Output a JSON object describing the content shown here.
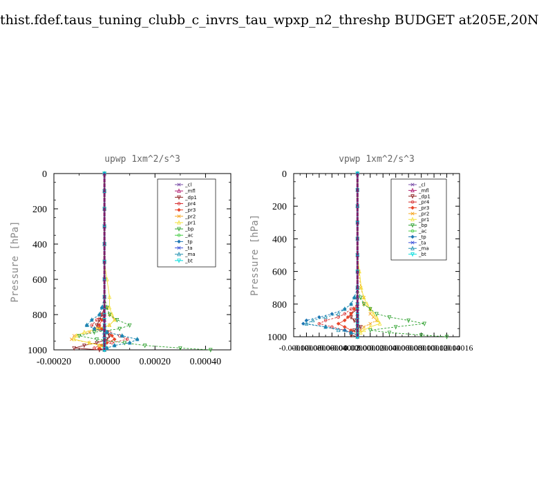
{
  "page": {
    "title": "thist.fdef.taus_tuning_clubb_c_invrs_tau_wpxp_n2_threshp  BUDGET at205E,20N"
  },
  "colors": {
    "cl": "#7b4fa8",
    "mfl": "#b0196e",
    "dp1": "#8b1a1a",
    "pr4": "#d62728",
    "pr3": "#e8452a",
    "pr2": "#f5a623",
    "pr1": "#f2e03a",
    "bp": "#2ca02c",
    "ac": "#44cc44",
    "tp": "#1f77b4",
    "ta": "#3a50d9",
    "ma": "#1f8fb0",
    "bt": "#00dddd"
  },
  "chart_data": [
    {
      "type": "line",
      "title": "upwp  1xm^2/s^3",
      "xlabel": "",
      "ylabel": "Pressure [hPa]",
      "xlim": [
        -0.0002,
        0.0005
      ],
      "ylim": [
        1000,
        0
      ],
      "xticks": [
        -0.0002,
        0,
        0.0002,
        0.0004
      ],
      "xtick_labels": [
        "-0.00020",
        "0.00000",
        "0.00020",
        "0.00040"
      ],
      "yticks": [
        0,
        200,
        400,
        600,
        800,
        1000
      ],
      "ytick_labels": [
        "0",
        "200",
        "400",
        "600",
        "800",
        "1000"
      ],
      "legend_position": "top-right",
      "grid": false,
      "levels": [
        0,
        100,
        200,
        300,
        400,
        500,
        600,
        700,
        760,
        800,
        830,
        860,
        880,
        900,
        920,
        940,
        960,
        975,
        990,
        1000
      ],
      "series": [
        {
          "name": "_cl",
          "color_key": "cl",
          "values": [
            0,
            0,
            0,
            0,
            0,
            0,
            0,
            0,
            0,
            0,
            0,
            0,
            0,
            0,
            0,
            0,
            0,
            0,
            0,
            0
          ]
        },
        {
          "name": "_mfl",
          "color_key": "mfl",
          "values": [
            0,
            0,
            0,
            0,
            0,
            0,
            0,
            0,
            0,
            0,
            0,
            0,
            0,
            0,
            0,
            0,
            0,
            0,
            0,
            0
          ]
        },
        {
          "name": "_dp1",
          "color_key": "dp1",
          "values": [
            0,
            0,
            0,
            0,
            0,
            0,
            0,
            0,
            0,
            -1e-05,
            -2e-05,
            -3e-05,
            -2e-05,
            1e-05,
            2e-05,
            1e-05,
            -3e-05,
            -8e-05,
            -0.00012,
            -2e-05
          ]
        },
        {
          "name": "_pr4",
          "color_key": "pr4",
          "values": [
            0,
            0,
            0,
            0,
            0,
            0,
            0,
            0,
            0,
            -1e-05,
            -3e-05,
            -5e-05,
            -3e-05,
            2e-05,
            6e-05,
            9e-05,
            3e-05,
            -2e-05,
            -4e-05,
            0
          ]
        },
        {
          "name": "_pr3",
          "color_key": "pr3",
          "values": [
            0,
            0,
            0,
            0,
            0,
            0,
            0,
            0,
            0,
            0,
            -1e-05,
            -2e-05,
            -1e-05,
            1e-05,
            3e-05,
            4e-05,
            1e-05,
            -1e-05,
            -2e-05,
            0
          ]
        },
        {
          "name": "_pr2",
          "color_key": "pr2",
          "values": [
            0,
            0,
            0,
            0,
            0,
            0,
            0,
            0,
            1e-05,
            2e-05,
            4e-05,
            2e-05,
            -2e-05,
            -6e-05,
            -0.00012,
            -0.00013,
            -6e-05,
            -1e-05,
            1e-05,
            0
          ]
        },
        {
          "name": "_pr1",
          "color_key": "pr1",
          "values": [
            0,
            0,
            0,
            0,
            0,
            0,
            1e-05,
            2e-05,
            2e-05,
            3e-05,
            4e-05,
            2e-05,
            -3e-05,
            -8e-05,
            -0.00011,
            -0.00012,
            -6e-05,
            -2e-05,
            0,
            0
          ]
        },
        {
          "name": "_bp",
          "color_key": "bp",
          "values": [
            0,
            0,
            0,
            0,
            0,
            0,
            0,
            0,
            1e-05,
            2e-05,
            5e-05,
            0.0001,
            6e-05,
            -4e-05,
            -0.0001,
            -3e-05,
            8e-05,
            0.00016,
            0.0003,
            0.00042
          ]
        },
        {
          "name": "_ac",
          "color_key": "ac",
          "values": [
            0,
            0,
            0,
            0,
            0,
            0,
            0,
            0,
            0,
            0,
            0,
            0,
            0,
            0,
            0,
            0,
            0,
            0,
            0,
            0
          ]
        },
        {
          "name": "_tp",
          "color_key": "tp",
          "values": [
            0,
            0,
            0,
            0,
            0,
            0,
            0,
            0,
            -1e-05,
            -2e-05,
            -5e-05,
            -7e-05,
            -4e-05,
            1e-05,
            7e-05,
            0.00013,
            0.0001,
            4e-05,
            1e-05,
            0
          ]
        },
        {
          "name": "_ta",
          "color_key": "ta",
          "values": [
            0,
            0,
            0,
            0,
            0,
            0,
            0,
            0,
            0,
            0,
            0,
            0,
            0,
            0,
            0,
            0,
            0,
            0,
            0,
            0
          ]
        },
        {
          "name": "_ma",
          "color_key": "ma",
          "values": [
            0,
            0,
            0,
            0,
            0,
            0,
            0,
            0,
            -1e-05,
            -2e-05,
            -5e-05,
            -7e-05,
            -4e-05,
            1e-05,
            7e-05,
            0.00013,
            0.0001,
            4e-05,
            1e-05,
            0
          ]
        },
        {
          "name": "_bt",
          "color_key": "bt",
          "values": [
            0,
            0,
            0,
            0,
            0,
            0,
            0,
            0,
            0,
            0,
            0,
            0,
            0,
            0,
            0,
            0,
            0,
            0,
            0,
            0
          ]
        }
      ]
    },
    {
      "type": "line",
      "title": "vpwp  1xm^2/s^3",
      "xlabel": "",
      "ylabel": "Pressure [hPa]",
      "xlim": [
        -0.0001,
        0.00016
      ],
      "ylim": [
        1000,
        0
      ],
      "xticks": [
        -0.0001,
        -8e-05,
        -6e-05,
        -4e-05,
        -2e-05,
        0,
        2e-05,
        4e-05,
        6e-05,
        8e-05,
        0.0001,
        0.00012,
        0.00014,
        0.00016
      ],
      "xtick_labels": [
        "-0.00010",
        "-0.00008",
        "-0.00006",
        "-0.00004",
        "-0.00002",
        "0.00000",
        "0.00002",
        "0.00004",
        "0.00006",
        "0.00008",
        "0.00010",
        "0.00012",
        "0.00014",
        "0.00016"
      ],
      "yticks": [
        0,
        200,
        400,
        600,
        800,
        1000
      ],
      "ytick_labels": [
        "0",
        "200",
        "400",
        "600",
        "800",
        "1000"
      ],
      "legend_position": "top-right",
      "grid": false,
      "levels": [
        0,
        100,
        200,
        300,
        400,
        500,
        600,
        700,
        760,
        800,
        830,
        860,
        880,
        900,
        920,
        940,
        960,
        975,
        990,
        1000
      ],
      "series": [
        {
          "name": "_cl",
          "color_key": "cl",
          "values": [
            0,
            0,
            0,
            0,
            0,
            0,
            0,
            0,
            0,
            0,
            0,
            0,
            0,
            0,
            0,
            0,
            0,
            0,
            0,
            0
          ]
        },
        {
          "name": "_mfl",
          "color_key": "mfl",
          "values": [
            0,
            0,
            0,
            0,
            0,
            0,
            0,
            0,
            0,
            0,
            0,
            0,
            0,
            0,
            0,
            0,
            0,
            0,
            0,
            0
          ]
        },
        {
          "name": "_dp1",
          "color_key": "dp1",
          "values": [
            0,
            0,
            0,
            0,
            0,
            0,
            0,
            0,
            0,
            0,
            0,
            -1e-05,
            -1e-05,
            -5e-06,
            0,
            5e-06,
            -5e-06,
            -1e-05,
            -1e-05,
            0
          ]
        },
        {
          "name": "_pr4",
          "color_key": "pr4",
          "values": [
            0,
            0,
            0,
            0,
            0,
            0,
            0,
            0,
            0,
            0,
            -1e-05,
            -2e-05,
            -3e-05,
            -5e-05,
            -6e-05,
            -4e-05,
            -2e-05,
            -1e-05,
            0,
            0
          ]
        },
        {
          "name": "_pr3",
          "color_key": "pr3",
          "values": [
            0,
            0,
            0,
            0,
            0,
            0,
            0,
            0,
            0,
            0,
            -5e-06,
            -1e-05,
            -1.5e-05,
            -2e-05,
            -3e-05,
            -2e-05,
            -1e-05,
            0,
            0,
            0
          ]
        },
        {
          "name": "_pr2",
          "color_key": "pr2",
          "values": [
            0,
            0,
            0,
            0,
            0,
            0,
            2e-06,
            5e-06,
            1e-05,
            1e-05,
            2e-05,
            2e-05,
            2.5e-05,
            3e-05,
            2e-05,
            1e-05,
            5e-06,
            0,
            0,
            0
          ]
        },
        {
          "name": "_pr1",
          "color_key": "pr1",
          "values": [
            0,
            0,
            0,
            0,
            0,
            0,
            3e-06,
            6e-06,
            1e-05,
            1.5e-05,
            2e-05,
            2.5e-05,
            3e-05,
            3.2e-05,
            3.5e-05,
            2e-05,
            1e-05,
            5e-06,
            0,
            0
          ]
        },
        {
          "name": "_bp",
          "color_key": "bp",
          "values": [
            0,
            0,
            0,
            0,
            0,
            0,
            0,
            0,
            5e-06,
            1e-05,
            2e-05,
            3e-05,
            5e-05,
            8e-05,
            0.000105,
            6e-05,
            2e-05,
            5e-05,
            0.0001,
            0.00014
          ]
        },
        {
          "name": "_ac",
          "color_key": "ac",
          "values": [
            0,
            0,
            0,
            0,
            0,
            0,
            0,
            0,
            0,
            0,
            0,
            0,
            0,
            0,
            0,
            0,
            0,
            0,
            0,
            0
          ]
        },
        {
          "name": "_tp",
          "color_key": "tp",
          "values": [
            0,
            0,
            0,
            0,
            0,
            0,
            0,
            0,
            -5e-06,
            -1e-05,
            -2e-05,
            -4e-05,
            -6e-05,
            -8e-05,
            -8.5e-05,
            -5e-05,
            -2e-05,
            -1e-05,
            0,
            0
          ]
        },
        {
          "name": "_ta",
          "color_key": "ta",
          "values": [
            0,
            0,
            0,
            0,
            0,
            0,
            0,
            0,
            0,
            0,
            0,
            0,
            0,
            0,
            0,
            0,
            0,
            0,
            0,
            0
          ]
        },
        {
          "name": "_ma",
          "color_key": "ma",
          "values": [
            0,
            0,
            0,
            0,
            0,
            0,
            0,
            0,
            -5e-06,
            -1e-05,
            -2e-05,
            -3e-05,
            -5e-05,
            -7e-05,
            -8e-05,
            -5e-05,
            -3e-05,
            -1e-05,
            0,
            0
          ]
        },
        {
          "name": "_bt",
          "color_key": "bt",
          "values": [
            0,
            0,
            0,
            0,
            0,
            0,
            0,
            0,
            0,
            0,
            0,
            0,
            0,
            0,
            0,
            0,
            0,
            0,
            0,
            0
          ]
        }
      ]
    }
  ]
}
